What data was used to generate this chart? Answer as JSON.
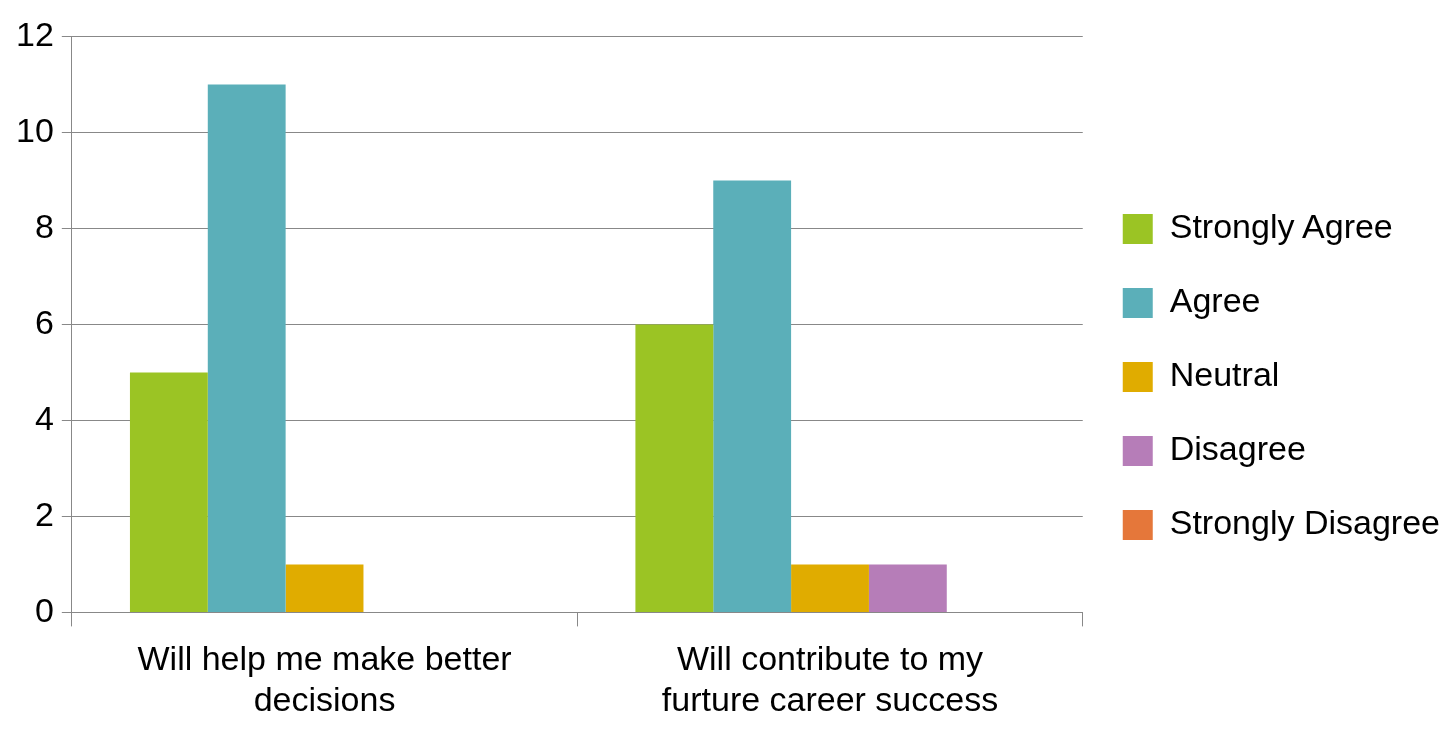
{
  "chart_data": {
    "type": "bar",
    "categories": [
      "Will help me make better decisions",
      "Will contribute to my furture career success"
    ],
    "series": [
      {
        "name": "Strongly Agree",
        "color": "#9bc424",
        "values": [
          5,
          6
        ]
      },
      {
        "name": "Agree",
        "color": "#5bafb9",
        "values": [
          11,
          9
        ]
      },
      {
        "name": "Neutral",
        "color": "#e0ac00",
        "values": [
          1,
          1
        ]
      },
      {
        "name": "Disagree",
        "color": "#b67db8",
        "values": [
          0,
          1
        ]
      },
      {
        "name": "Strongly Disagree",
        "color": "#e5773a",
        "values": [
          0,
          0
        ]
      }
    ],
    "ylim": [
      0,
      12
    ],
    "yticks": [
      0,
      2,
      4,
      6,
      8,
      10,
      12
    ],
    "grid": "y",
    "legend": "right"
  }
}
